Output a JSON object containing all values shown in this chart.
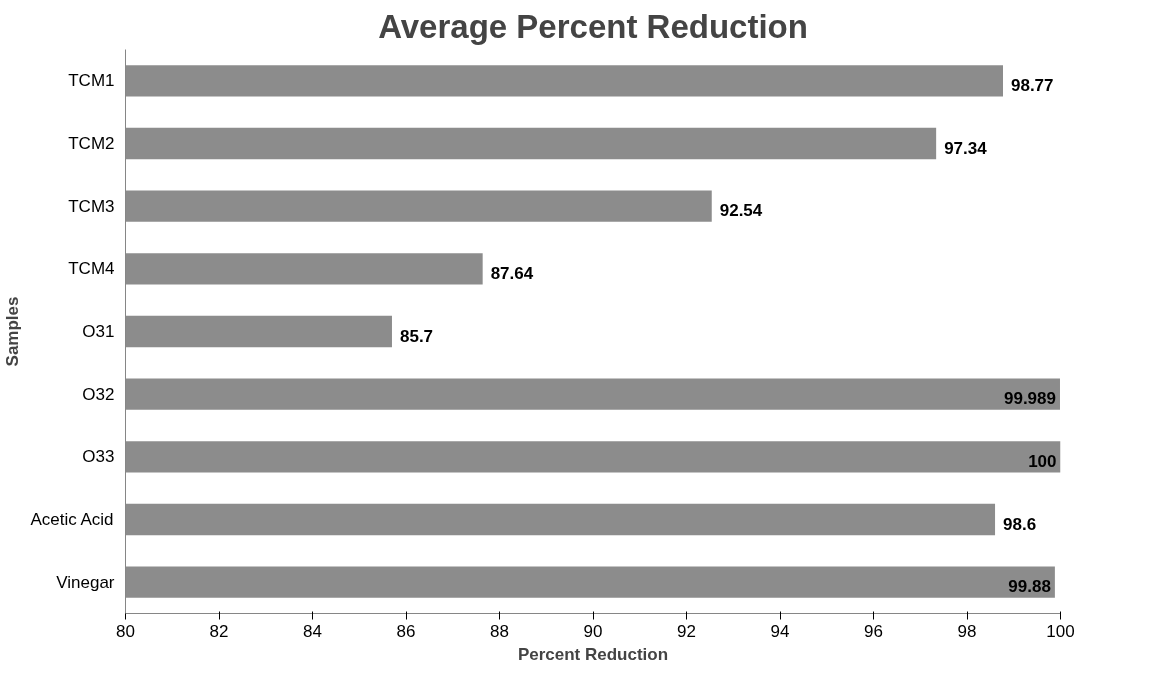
{
  "chart_data": {
    "type": "bar",
    "orientation": "horizontal",
    "title": "Average Percent Reduction",
    "xlabel": "Percent Reduction",
    "ylabel": "Samples",
    "categories": [
      "TCM1",
      "TCM2",
      "TCM3",
      "TCM4",
      "O31",
      "O32",
      "O33",
      "Acetic Acid",
      "Vinegar"
    ],
    "values": [
      98.77,
      97.34,
      92.54,
      87.64,
      85.7,
      99.989,
      100,
      98.6,
      99.88
    ],
    "color": "#8c8c8c",
    "xlim": [
      80,
      100
    ],
    "xticks": [
      80,
      82,
      84,
      86,
      88,
      90,
      92,
      94,
      96,
      98,
      100
    ],
    "grid": false,
    "data_labels": true
  }
}
